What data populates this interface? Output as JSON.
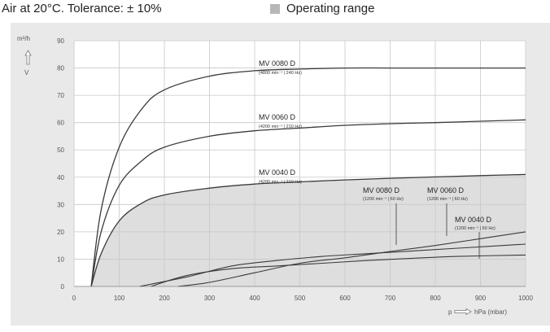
{
  "header": {
    "left_text": "Air at 20°C. Tolerance: ± 10%",
    "legend_label": "Operating range"
  },
  "colors": {
    "panel_bg": "#e9e9e9",
    "plot_bg": "#ffffff",
    "operating_range_fill": "#dedede",
    "legend_swatch": "#b7b7b7",
    "curve": "#3a3a3a",
    "grid": "#c8c8c8"
  },
  "chart_data": {
    "type": "line",
    "title": "",
    "xlabel": "p",
    "xunit": "hPa (mbar)",
    "ylabel": "m³/h",
    "yvar": "V",
    "xlim": [
      0,
      1000
    ],
    "ylim": [
      0,
      90
    ],
    "xticks": [
      0,
      100,
      200,
      300,
      400,
      500,
      600,
      700,
      800,
      900,
      1000
    ],
    "yticks": [
      0,
      10,
      20,
      30,
      40,
      50,
      60,
      70,
      80,
      90
    ],
    "grid": true,
    "legend": [
      {
        "label": "Operating range",
        "color": "#b7b7b7"
      }
    ],
    "series": [
      {
        "name": "MV 0080 D",
        "sub": "(4800 min⁻¹ | 240 Hz)",
        "x": [
          38,
          60,
          100,
          150,
          200,
          300,
          400,
          500,
          600,
          700,
          800,
          900,
          1000
        ],
        "y": [
          0,
          28,
          51,
          65,
          72,
          77,
          79,
          79.6,
          80,
          80,
          80,
          80,
          80
        ]
      },
      {
        "name": "MV 0060 D",
        "sub": "(4200 min⁻¹ | 210 Hz)",
        "x": [
          38,
          60,
          100,
          150,
          200,
          300,
          400,
          500,
          600,
          700,
          800,
          900,
          1000
        ],
        "y": [
          0,
          20,
          37,
          46,
          51,
          55,
          57,
          58,
          59,
          59.6,
          60,
          60.5,
          61
        ]
      },
      {
        "name": "MV 0040 D",
        "sub": "(4200 min⁻¹ | 210 Hz)",
        "x": [
          38,
          60,
          100,
          150,
          200,
          300,
          400,
          500,
          600,
          700,
          800,
          900,
          1000
        ],
        "y": [
          0,
          12,
          24,
          30.5,
          33.5,
          36,
          37.5,
          38.3,
          39,
          39.6,
          40.1,
          40.6,
          41
        ]
      },
      {
        "name": "MV 0080 D",
        "sub": "(1200 min⁻¹ | 60 Hz)",
        "x": [
          170,
          250,
          350,
          450,
          550,
          650,
          750,
          850,
          1000
        ],
        "y": [
          0,
          4,
          6.5,
          7.5,
          8.5,
          9.5,
          10.3,
          11,
          11.5
        ]
      },
      {
        "name": "MV 0060 D",
        "sub": "(1200 min⁻¹ | 60 Hz)",
        "x": [
          145,
          250,
          350,
          450,
          550,
          650,
          750,
          850,
          1000
        ],
        "y": [
          0,
          3.5,
          7.5,
          9.5,
          11,
          12,
          13,
          14,
          15.5
        ]
      },
      {
        "name": "MV 0040 D",
        "sub": "(1200 min⁻¹ | 60 Hz)",
        "x": [
          230,
          300,
          400,
          500,
          600,
          700,
          800,
          900,
          1000
        ],
        "y": [
          0,
          1.5,
          5,
          8.5,
          10.5,
          12.8,
          15,
          17.5,
          20
        ]
      }
    ]
  }
}
